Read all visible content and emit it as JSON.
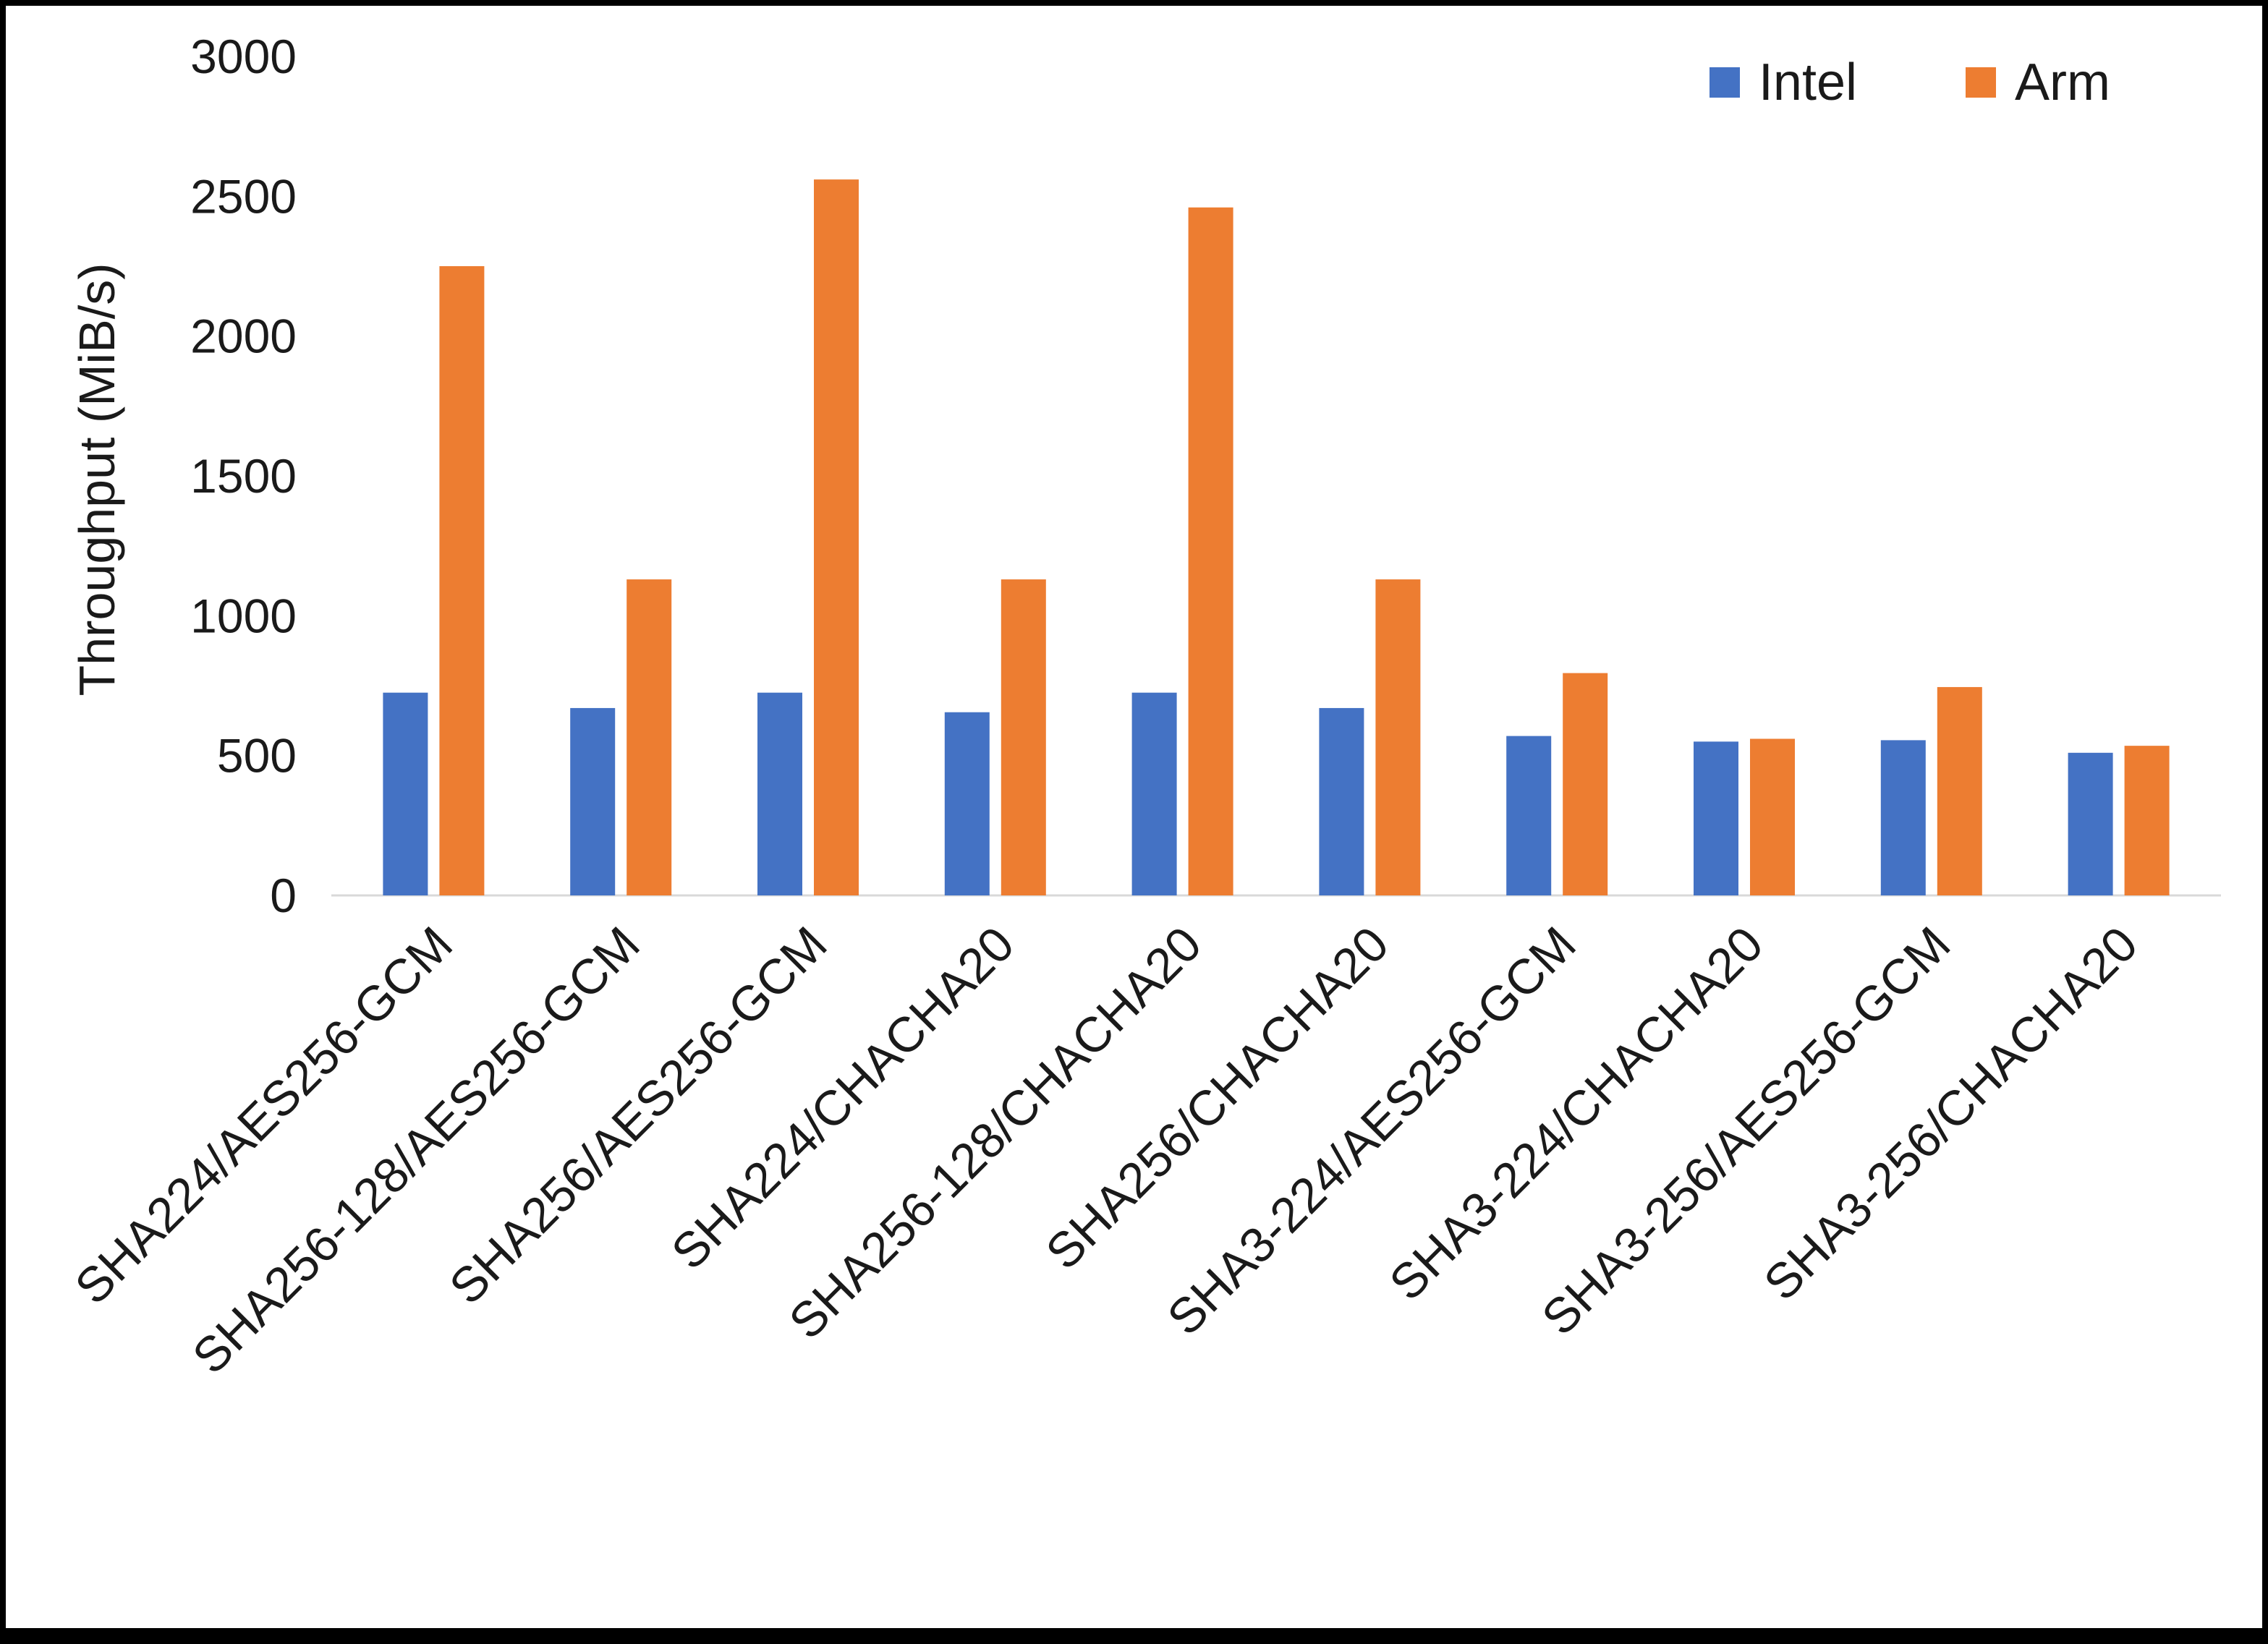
{
  "chart_data": {
    "type": "bar",
    "title": "",
    "xlabel": "",
    "ylabel": "Throughput (MiB/s)",
    "ylim": [
      0,
      3000
    ],
    "yticks": [
      0,
      500,
      1000,
      1500,
      2000,
      2500,
      3000
    ],
    "grid": false,
    "legend_position": "top-right",
    "categories": [
      "SHA224/AES256-GCM",
      "SHA256-128/AES256-GCM",
      "SHA256/AES256-GCM",
      "SHA224/CHACHA20",
      "SHA256-128/CHACHA20",
      "SHA256/CHACHA20",
      "SHA3-224/AES256-GCM",
      "SHA3-224/CHACHA20",
      "SHA3-256/AES256-GCM",
      "SHA3-256/CHACHA20"
    ],
    "series": [
      {
        "name": "Intel",
        "color": "#4472C4",
        "values": [
          725,
          670,
          725,
          655,
          725,
          670,
          570,
          550,
          555,
          510
        ]
      },
      {
        "name": "Arm",
        "color": "#ED7D31",
        "values": [
          2250,
          1130,
          2560,
          1130,
          2460,
          1130,
          795,
          560,
          745,
          535
        ]
      }
    ]
  },
  "colors": {
    "axis_line": "#d9d9d9",
    "text": "#1a1a1a",
    "frame_border": "#000000"
  }
}
